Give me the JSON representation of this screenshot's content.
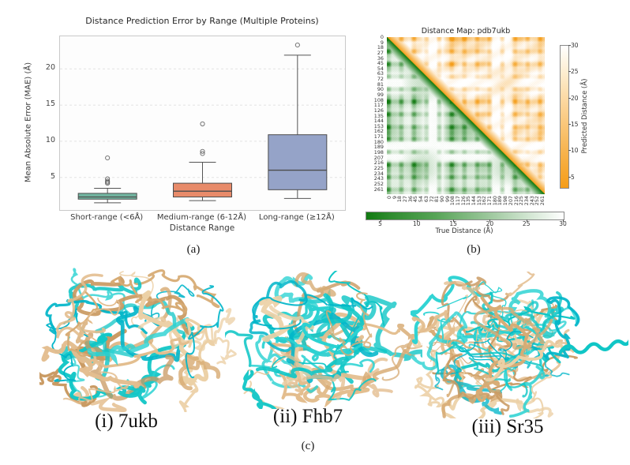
{
  "figure": {
    "captions": {
      "a": "(a)",
      "b": "(b)",
      "c": "(c)"
    },
    "panel_c": {
      "proteins": [
        {
          "label": "(i) 7ukb"
        },
        {
          "label": "(ii) Fhb7"
        },
        {
          "label": "(iii) Sr35"
        }
      ]
    }
  },
  "chart_data": [
    {
      "type": "box",
      "title": "Distance Prediction Error by Range (Multiple Proteins)",
      "xlabel": "Distance Range",
      "ylabel": "Mean Absolute Error (MAE) (Å)",
      "ylim": [
        0.5,
        24.5
      ],
      "yticks": [
        5,
        10,
        15,
        20
      ],
      "grid": "horizontal-dashed",
      "categories": [
        "Short-range (<6Å)",
        "Medium-range (6-12Å)",
        "Long-range (≥12Å)"
      ],
      "series": [
        {
          "category": "Short-range (<6Å)",
          "whisker_low": 1.5,
          "q1": 2.0,
          "median": 2.3,
          "q3": 2.8,
          "whisker_high": 3.5,
          "outliers": [
            4.2,
            4.35,
            4.5,
            4.8,
            7.7
          ],
          "color": "#72b6a1"
        },
        {
          "category": "Medium-range (6-12Å)",
          "whisker_low": 1.8,
          "q1": 2.3,
          "median": 3.1,
          "q3": 4.2,
          "whisker_high": 7.1,
          "outliers": [
            8.3,
            8.6,
            12.4
          ],
          "color": "#e88b6a"
        },
        {
          "category": "Long-range (≥12Å)",
          "whisker_low": 2.1,
          "q1": 3.3,
          "median": 6.0,
          "q3": 10.9,
          "whisker_high": 21.9,
          "outliers": [
            23.3
          ],
          "color": "#95a3c8"
        }
      ]
    },
    {
      "type": "heatmap",
      "title": "Distance Map: pdb7ukb",
      "residue_ticks": [
        0,
        9,
        18,
        27,
        36,
        45,
        54,
        63,
        72,
        81,
        90,
        99,
        108,
        117,
        126,
        135,
        144,
        153,
        162,
        171,
        180,
        189,
        198,
        207,
        216,
        225,
        234,
        243,
        252,
        261
      ],
      "upper_triangle": {
        "name": "Predicted Distance (Å)",
        "colormap": "orange-to-white"
      },
      "lower_triangle": {
        "name": "True Distance (Å)",
        "colormap": "green-to-white"
      },
      "value_range": [
        3,
        30
      ],
      "colorbars": {
        "predicted": {
          "label": "Predicted Distance (Å)",
          "ticks": [
            5,
            10,
            15,
            20,
            25,
            30
          ],
          "orientation": "vertical-right",
          "low_color": "#f59d18",
          "high_color": "#ffffff"
        },
        "true": {
          "label": "True Distance (Å)",
          "ticks": [
            5,
            10,
            15,
            20,
            25,
            30
          ],
          "orientation": "horizontal-bottom",
          "low_color": "#117a11",
          "high_color": "#ffffff"
        }
      }
    }
  ]
}
